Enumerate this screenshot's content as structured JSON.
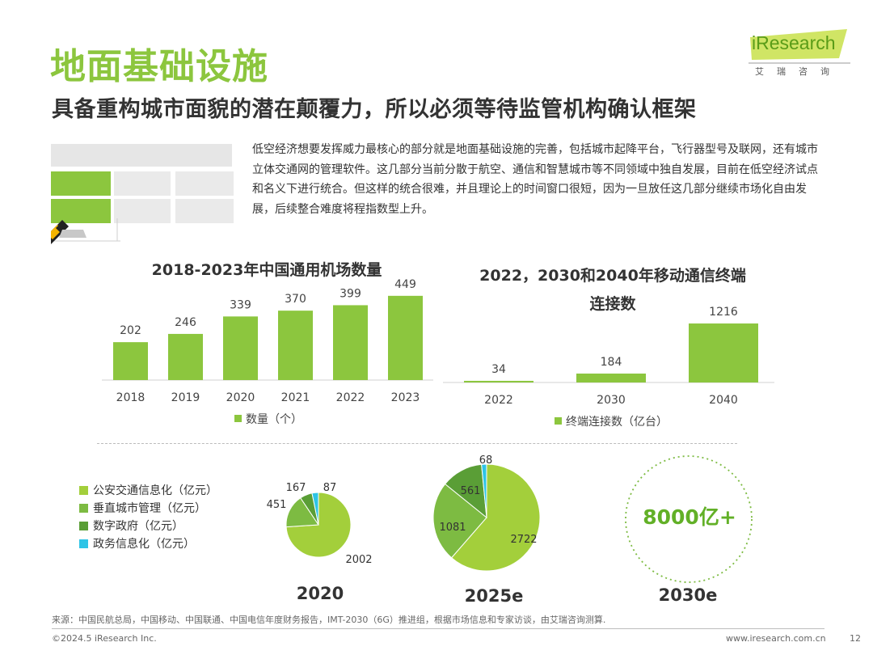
{
  "header": {
    "title": "地面基础设施",
    "subtitle": "具备重构城市面貌的潜在颠覆力，所以必须等待监管机构确认框架",
    "logo_brand": "iResearch",
    "logo_cn": "艾瑞咨询"
  },
  "intro": "低空经济想要发挥威力最核心的部分就是地面基础设施的完善，包括城市起降平台，飞行器型号及联网，还有城市立体交通网的管理软件。这几部分当前分散于航空、通信和智慧城市等不同领域中独自发展，目前在低空经济试点和名义下进行统合。但这样的统合很难，并且理论上的时间窗口很短，因为一旦放任这几部分继续市场化自由发展，后续整合难度将程指数型上升。",
  "colors": {
    "green_main": "#8cc63e",
    "green_mid": "#7dbb42",
    "green_dark": "#5a9e36",
    "cyan": "#2ec4e6",
    "title_green": "#8cc63e"
  },
  "chart_data": [
    {
      "type": "bar",
      "title": "2018-2023年中国通用机场数量",
      "categories": [
        "2018",
        "2019",
        "2020",
        "2021",
        "2022",
        "2023"
      ],
      "values": [
        202,
        246,
        339,
        370,
        399,
        449
      ],
      "legend": "数量（个）",
      "ylim": [
        0,
        500
      ]
    },
    {
      "type": "bar",
      "title_line1": "2022，2030和2040年移动通信终端",
      "title_line2": "连接数",
      "categories": [
        "2022",
        "2030",
        "2040"
      ],
      "values": [
        34,
        184,
        1216
      ],
      "legend": "终端连接数（亿台）",
      "ylim": [
        0,
        1400
      ]
    },
    {
      "type": "pie",
      "year": "2020",
      "legend": [
        "公安交通信息化（亿元）",
        "垂直城市管理（亿元）",
        "数字政府（亿元）",
        "政务信息化（亿元）"
      ],
      "values": [
        2002,
        451,
        167,
        87
      ],
      "labels": [
        "2002",
        "451",
        "167",
        "87"
      ]
    },
    {
      "type": "pie",
      "year": "2025e",
      "values": [
        2722,
        1081,
        561,
        68
      ],
      "labels": [
        "2722",
        "1081",
        "561",
        "68"
      ]
    }
  ],
  "future": {
    "year": "2030e",
    "value": "8000亿+"
  },
  "footer": {
    "source": "来源：中国民航总局，中国移动、中国联通、中国电信年度财务报告，IMT-2030（6G）推进组，根据市场信息和专家访谈，由艾瑞咨询测算.",
    "copyright": "©2024.5 iResearch Inc.",
    "website": "www.iresearch.com.cn",
    "page": "12"
  }
}
